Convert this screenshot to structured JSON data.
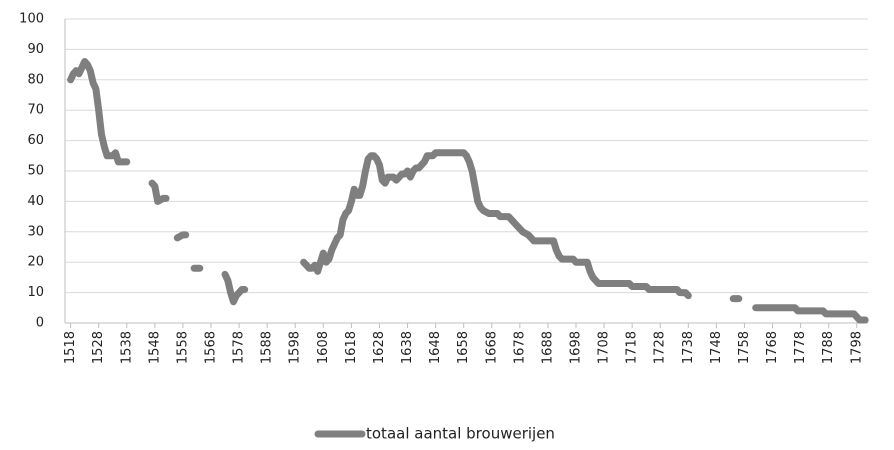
{
  "chart_data": {
    "type": "line",
    "x": [
      1518,
      1519,
      1520,
      1521,
      1522,
      1523,
      1524,
      1525,
      1526,
      1527,
      1528,
      1529,
      1530,
      1531,
      1533,
      1534,
      1535,
      1538,
      1542,
      1547,
      1548,
      1549,
      1551,
      1552,
      1554,
      1556,
      1558,
      1559,
      1560,
      1562,
      1564,
      1568,
      1573,
      1574,
      1575,
      1576,
      1577,
      1578,
      1579,
      1580,
      1590,
      1601,
      1602,
      1603,
      1604,
      1605,
      1606,
      1607,
      1608,
      1609,
      1610,
      1611,
      1612,
      1613,
      1614,
      1615,
      1616,
      1617,
      1618,
      1619,
      1620,
      1621,
      1622,
      1623,
      1624,
      1625,
      1626,
      1627,
      1628,
      1629,
      1630,
      1631,
      1633,
      1634,
      1635,
      1636,
      1637,
      1638,
      1639,
      1640,
      1641,
      1642,
      1643,
      1644,
      1645,
      1647,
      1648,
      1658,
      1659,
      1660,
      1661,
      1662,
      1663,
      1664,
      1665,
      1667,
      1670,
      1671,
      1674,
      1675,
      1677,
      1679,
      1681,
      1682,
      1683,
      1690,
      1691,
      1692,
      1693,
      1697,
      1698,
      1702,
      1703,
      1704,
      1705,
      1706,
      1717,
      1718,
      1723,
      1724,
      1734,
      1735,
      1737,
      1738,
      1742,
      1754,
      1756,
      1758,
      1762,
      1776,
      1777,
      1786,
      1787,
      1797,
      1798,
      1799,
      1801
    ],
    "series": [
      {
        "name": "totaal aantal brouwerijen",
        "color": "#7f7f7f",
        "values": [
          80,
          82,
          83,
          82,
          84,
          86,
          85,
          83,
          79,
          77,
          70,
          62,
          58,
          55,
          55,
          56,
          53,
          53,
          null,
          46,
          45,
          40,
          41,
          41,
          null,
          28,
          29,
          29,
          null,
          18,
          18,
          null,
          16,
          14,
          10,
          7,
          9,
          10,
          11,
          11,
          null,
          20,
          19,
          18,
          18,
          19,
          17,
          20,
          23,
          20,
          21,
          24,
          26,
          28,
          29,
          34,
          36,
          37,
          40,
          44,
          42,
          42,
          45,
          50,
          54,
          55,
          55,
          54,
          52,
          47,
          46,
          48,
          48,
          47,
          48,
          49,
          49,
          50,
          48,
          50,
          51,
          51,
          52,
          53,
          55,
          55,
          56,
          56,
          55,
          53,
          50,
          45,
          40,
          38,
          37,
          36,
          36,
          35,
          35,
          34,
          32,
          30,
          29,
          28,
          27,
          27,
          24,
          22,
          21,
          21,
          20,
          20,
          17,
          15,
          14,
          13,
          13,
          12,
          12,
          11,
          11,
          10,
          10,
          9,
          null,
          8,
          8,
          null,
          5,
          5,
          4,
          4,
          3,
          3,
          2,
          1,
          1
        ]
      }
    ],
    "xlim": [
      1516,
      1802
    ],
    "xticks": [
      1518,
      1528,
      1538,
      1548,
      1558,
      1568,
      1578,
      1588,
      1598,
      1608,
      1618,
      1628,
      1638,
      1648,
      1658,
      1668,
      1678,
      1688,
      1698,
      1708,
      1718,
      1728,
      1738,
      1748,
      1758,
      1768,
      1778,
      1788,
      1798
    ],
    "ylim": [
      0,
      100
    ],
    "yticks": [
      0,
      10,
      20,
      30,
      40,
      50,
      60,
      70,
      80,
      90,
      100
    ],
    "grid": true,
    "legend": "bottom"
  }
}
